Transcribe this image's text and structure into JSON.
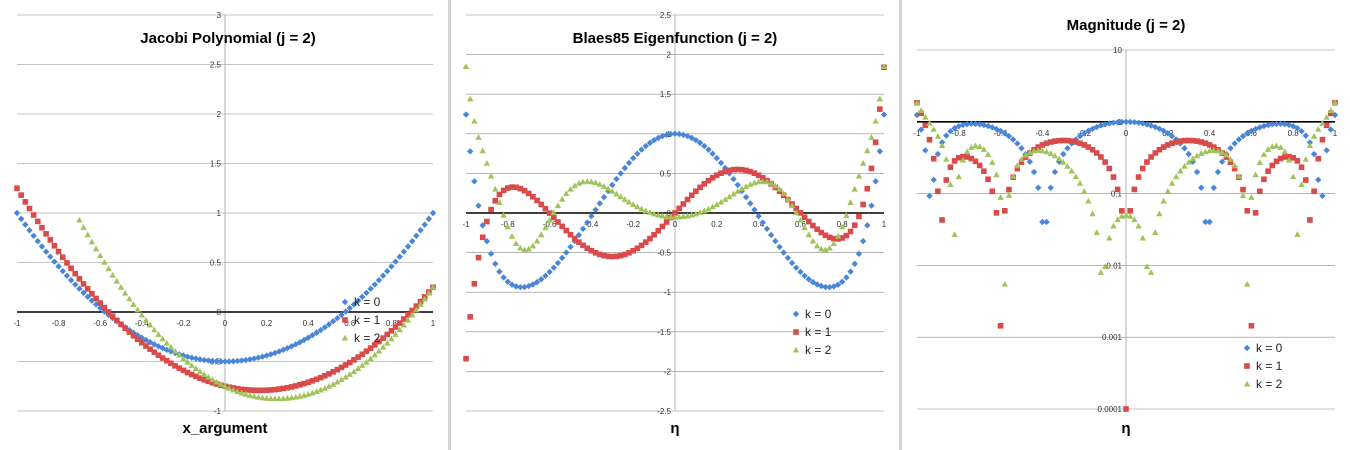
{
  "colors": {
    "k0": "#4a86d8",
    "k1": "#d94a4a",
    "k2": "#9fc55a",
    "grid": "#8c8c8c",
    "axis": "#000000"
  },
  "chart_data": [
    {
      "type": "scatter",
      "title": "Jacobi Polynomial (j = 2)",
      "xlabel": "x_argument",
      "ylabel": "",
      "xlim": [
        -1,
        1
      ],
      "ylim": [
        -1,
        3
      ],
      "xticks": [
        -1,
        -0.8,
        -0.6,
        -0.4,
        -0.2,
        0,
        0.2,
        0.4,
        0.6,
        0.8,
        1
      ],
      "yticks": [
        -1,
        -0.5,
        0,
        0.5,
        1,
        1.5,
        2,
        2.5,
        3
      ],
      "xtick_labels": [
        "-1",
        "-0.8",
        "-0.6",
        "-0.4",
        "-0.2",
        "0",
        "0.2",
        "0.4",
        "0.6",
        "0.8",
        "1"
      ],
      "ytick_labels": [
        "-1",
        "-0.5",
        "0",
        "0.5",
        "1",
        "1.5",
        "2",
        "2.5",
        "3"
      ],
      "grid": true,
      "legend": "bottom-right",
      "series": [
        {
          "name": "k = 0",
          "marker": "diamond",
          "expr": "j0",
          "domain": [
            -1,
            1
          ]
        },
        {
          "name": "k = 1",
          "marker": "square",
          "expr": "j1",
          "domain": [
            -1,
            1
          ]
        },
        {
          "name": "k = 2",
          "marker": "triangle",
          "expr": "j2",
          "domain": [
            -0.7,
            1
          ]
        }
      ]
    },
    {
      "type": "scatter",
      "title": "Blaes85 Eigenfunction (j = 2)",
      "xlabel": "η",
      "ylabel": "",
      "xlim": [
        -1,
        1
      ],
      "ylim": [
        -2.5,
        2.5
      ],
      "xticks": [
        -1,
        -0.8,
        -0.6,
        -0.4,
        -0.2,
        0,
        0.2,
        0.4,
        0.6,
        0.8,
        1
      ],
      "yticks": [
        -2.5,
        -2,
        -1.5,
        -1,
        -0.5,
        0,
        0.5,
        1,
        1.5,
        2,
        2.5
      ],
      "xtick_labels": [
        "-1",
        "-0.8",
        "-0.6",
        "-0.4",
        "-0.2",
        "0",
        "0.2",
        "0.4",
        "0.6",
        "0.8",
        "1"
      ],
      "ytick_labels": [
        "-2.5",
        "-2",
        "-1.5",
        "-1",
        "-0.5",
        "0",
        "0.5",
        "1",
        "1.5",
        "2",
        "2.5"
      ],
      "grid": true,
      "legend": "bottom-right",
      "series": [
        {
          "name": "k = 0",
          "marker": "diamond",
          "expr": "b0",
          "domain": [
            -1,
            1
          ]
        },
        {
          "name": "k = 1",
          "marker": "square",
          "expr": "b1",
          "domain": [
            -1,
            1
          ]
        },
        {
          "name": "k = 2",
          "marker": "triangle",
          "expr": "b2",
          "domain": [
            -1,
            1
          ]
        }
      ]
    },
    {
      "type": "scatter",
      "title": "Magnitude (j = 2)",
      "xlabel": "η",
      "ylabel": "",
      "xlim": [
        -1,
        1
      ],
      "ylim": [
        0.0001,
        10
      ],
      "yscale": "log",
      "xticks": [
        -1,
        -0.8,
        -0.6,
        -0.4,
        -0.2,
        0,
        0.2,
        0.4,
        0.6,
        0.8,
        1
      ],
      "yticks": [
        0.0001,
        0.001,
        0.01,
        0.1,
        1,
        10
      ],
      "xtick_labels": [
        "-1",
        "-0.8",
        "-0.6",
        "-0.4",
        "-0.2",
        "0",
        "0.2",
        "0.4",
        "0.6",
        "0.8",
        "1"
      ],
      "ytick_labels": [
        "0.0001",
        "0.001",
        "0.01",
        "0.1",
        "1",
        "10"
      ],
      "grid": true,
      "legend": "bottom-right",
      "series": [
        {
          "name": "k = 0",
          "marker": "diamond",
          "expr": "m0",
          "domain": [
            -1,
            1
          ]
        },
        {
          "name": "k = 1",
          "marker": "square",
          "expr": "m1",
          "domain": [
            -1,
            1
          ]
        },
        {
          "name": "k = 2",
          "marker": "triangle",
          "expr": "m2",
          "domain": [
            -1,
            1
          ]
        }
      ]
    }
  ]
}
